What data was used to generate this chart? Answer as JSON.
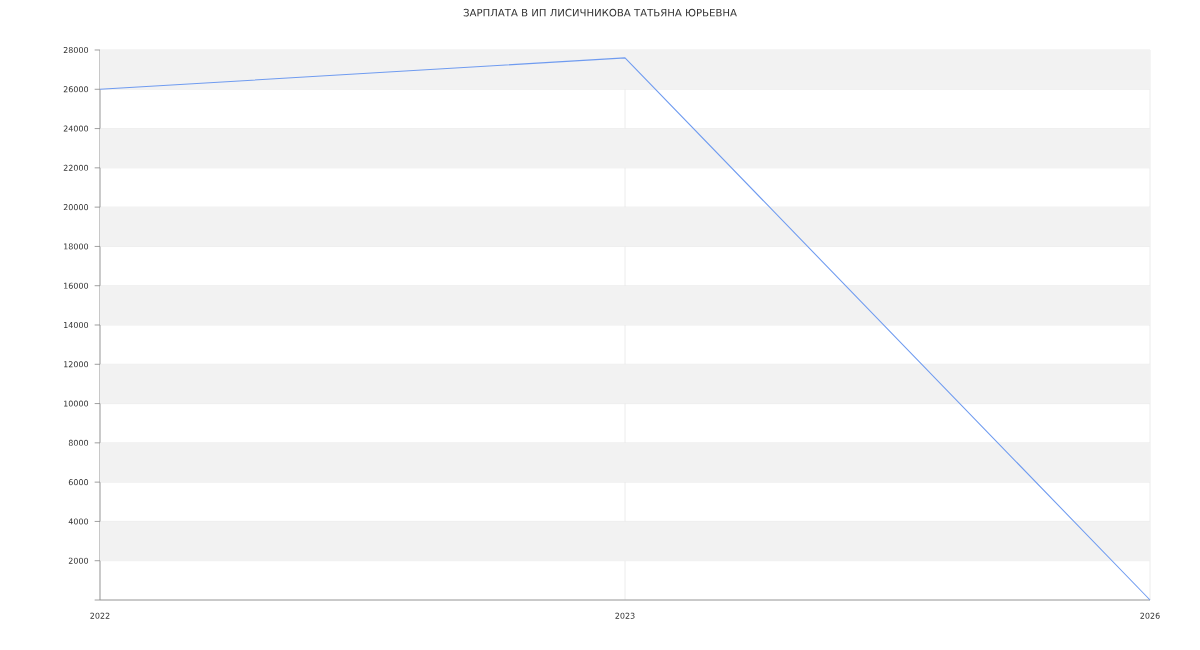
{
  "chart_data": {
    "type": "line",
    "title": "ЗАРПЛАТА В ИП ЛИСИЧНИКОВА ТАТЬЯНА ЮРЬЕВНА",
    "categories": [
      "2022",
      "2023",
      "2026"
    ],
    "series": [
      {
        "color": "#6f9bf0",
        "values": [
          26000,
          27600,
          0
        ]
      }
    ],
    "ylim": [
      0,
      28000
    ],
    "yticks": [
      {
        "value": 0,
        "label": null
      },
      2000,
      4000,
      6000,
      8000,
      10000,
      12000,
      14000,
      16000,
      18000,
      20000,
      22000,
      24000,
      26000,
      28000
    ],
    "grid": true,
    "marker": "none",
    "line_style": "solid"
  }
}
